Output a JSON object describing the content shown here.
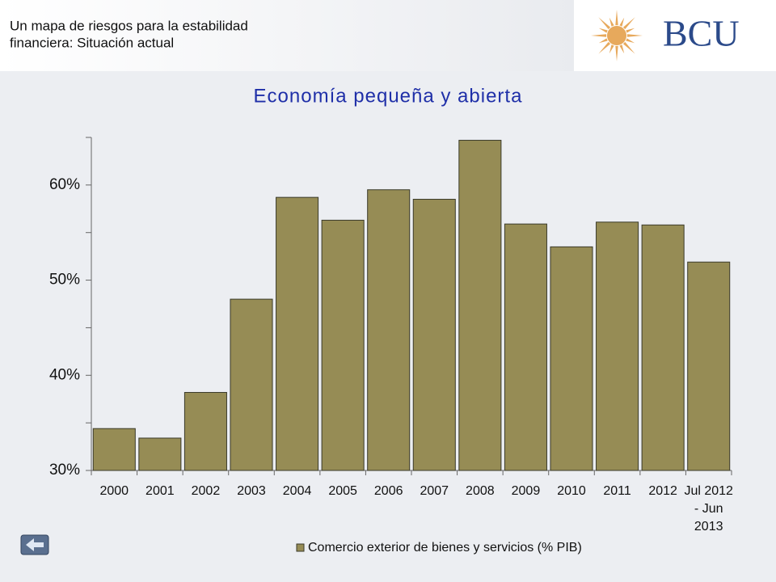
{
  "header": {
    "title_lines": [
      "Un mapa de riesgos para la estabilidad",
      "financiera: Situación actual"
    ],
    "logo_text": "BCU"
  },
  "chart_data": {
    "type": "bar",
    "title": "Economía pequeña y abierta",
    "categories": [
      "2000",
      "2001",
      "2002",
      "2003",
      "2004",
      "2005",
      "2006",
      "2007",
      "2008",
      "2009",
      "2010",
      "2011",
      "2012",
      "Jul 2012\n- Jun\n2013"
    ],
    "series": [
      {
        "name": "Comercio exterior de bienes y servicios (% PIB)",
        "color": "#968c55",
        "values": [
          34.4,
          33.4,
          38.2,
          48.0,
          58.7,
          56.3,
          59.5,
          58.5,
          64.7,
          55.9,
          53.5,
          56.1,
          55.8,
          51.9
        ]
      }
    ],
    "ylim": [
      30,
      65
    ],
    "yticks": [
      {
        "value": 30,
        "label": "30%"
      },
      {
        "value": 40,
        "label": "40%"
      },
      {
        "value": 50,
        "label": "50%"
      },
      {
        "value": 60,
        "label": "60%"
      }
    ],
    "yticks_minor": [
      35,
      45,
      55,
      65
    ],
    "legend": "bottom"
  }
}
